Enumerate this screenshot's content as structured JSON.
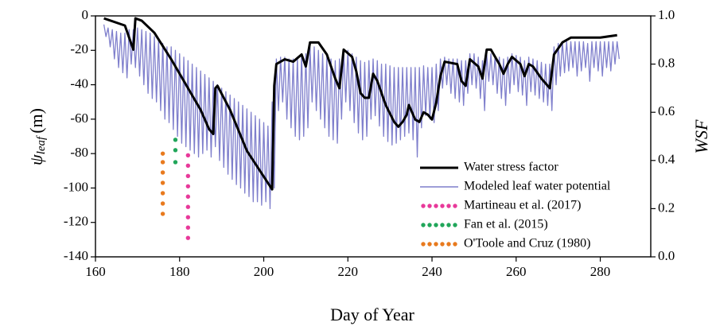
{
  "chart_data": {
    "type": "line",
    "x_label": "Day of Year",
    "y_label": {
      "symbol": "ψ",
      "subscript": "leaf",
      "unit": "(m)"
    },
    "y2_label": "WSF",
    "xlim": [
      160,
      292
    ],
    "xticks": [
      160,
      180,
      200,
      220,
      240,
      260,
      280
    ],
    "ylim": [
      -140,
      0
    ],
    "yticks": [
      -140,
      -120,
      -100,
      -80,
      -60,
      -40,
      -20,
      0
    ],
    "y2lim": [
      0,
      1
    ],
    "y2ticks": [
      {
        "value": 0,
        "label": "0.0"
      },
      0.2,
      0.4,
      0.6,
      0.8,
      {
        "value": 1,
        "label": "1.0"
      }
    ],
    "legend": "lower right",
    "series": [
      {
        "name": "Water stress factor",
        "color": "#000000",
        "style": "line",
        "axis": "y2",
        "x": [
          162,
          167,
          169,
          169.5,
          171,
          174,
          178,
          182,
          185,
          187,
          188,
          188.5,
          189,
          192,
          196,
          199,
          202,
          202.5,
          203,
          205,
          207,
          209,
          210,
          211,
          213,
          215,
          217,
          218,
          219,
          221,
          222,
          223,
          224,
          225,
          226,
          227,
          229,
          231,
          232,
          233,
          234,
          234.5,
          235,
          236,
          237,
          238,
          239,
          240,
          241,
          242,
          243,
          246,
          247,
          248,
          249,
          251,
          252,
          253,
          254,
          256,
          257,
          258,
          259,
          261,
          262,
          263,
          264,
          266,
          268,
          269,
          271,
          273,
          276,
          280,
          284
        ],
        "values": [
          0.99,
          0.96,
          0.86,
          0.99,
          0.98,
          0.93,
          0.82,
          0.7,
          0.61,
          0.53,
          0.51,
          0.7,
          0.71,
          0.61,
          0.44,
          0.36,
          0.28,
          0.71,
          0.8,
          0.82,
          0.81,
          0.84,
          0.79,
          0.89,
          0.89,
          0.84,
          0.74,
          0.7,
          0.86,
          0.83,
          0.77,
          0.68,
          0.66,
          0.66,
          0.76,
          0.73,
          0.63,
          0.56,
          0.54,
          0.56,
          0.59,
          0.63,
          0.61,
          0.57,
          0.56,
          0.6,
          0.59,
          0.57,
          0.64,
          0.75,
          0.81,
          0.8,
          0.73,
          0.71,
          0.82,
          0.79,
          0.74,
          0.86,
          0.86,
          0.8,
          0.76,
          0.8,
          0.83,
          0.8,
          0.75,
          0.8,
          0.79,
          0.74,
          0.7,
          0.84,
          0.89,
          0.91,
          0.91,
          0.91,
          0.92
        ]
      },
      {
        "name": "Modeled leaf water potential",
        "color": "#7f7fcc",
        "style": "line",
        "x": [
          162,
          162.5,
          163,
          163.5,
          164,
          164.5,
          165,
          165.5,
          166,
          166.5,
          167,
          167.5,
          168,
          168.5,
          169,
          169.5,
          170,
          170.5,
          171,
          171.5,
          172,
          172.5,
          173,
          173.5,
          174,
          174.5,
          175,
          175.5,
          176,
          176.5,
          177,
          177.5,
          178,
          178.5,
          179,
          179.5,
          180,
          180.5,
          181,
          181.5,
          182,
          182.5,
          183,
          183.5,
          184,
          184.5,
          185,
          185.5,
          186,
          186.5,
          187,
          187.5,
          188,
          188.5,
          189,
          189.5,
          190,
          190.5,
          191,
          191.5,
          192,
          192.5,
          193,
          193.5,
          194,
          194.5,
          195,
          195.5,
          196,
          196.5,
          197,
          197.5,
          198,
          198.5,
          199,
          199.5,
          200,
          200.5,
          201,
          201.5,
          202,
          202.5,
          203,
          203.5,
          204,
          204.5,
          205,
          205.5,
          206,
          206.5,
          207,
          207.5,
          208,
          208.5,
          209,
          209.5,
          210,
          210.5,
          211,
          211.5,
          212,
          212.5,
          213,
          213.5,
          214,
          214.5,
          215,
          215.5,
          216,
          216.5,
          217,
          217.5,
          218,
          218.5,
          219,
          219.5,
          220,
          220.5,
          221,
          221.5,
          222,
          222.5,
          223,
          223.5,
          224,
          224.5,
          225,
          225.5,
          226,
          226.5,
          227,
          227.5,
          228,
          228.5,
          229,
          229.5,
          230,
          230.5,
          231,
          231.5,
          232,
          232.5,
          233,
          233.5,
          234,
          234.5,
          235,
          235.5,
          236,
          236.5,
          237,
          237.5,
          238,
          238.5,
          239,
          239.5,
          240,
          240.5,
          241,
          241.5,
          242,
          242.5,
          243,
          243.5,
          244,
          244.5,
          245,
          245.5,
          246,
          246.5,
          247,
          247.5,
          248,
          248.5,
          249,
          249.5,
          250,
          250.5,
          251,
          251.5,
          252,
          252.5,
          253,
          253.5,
          254,
          254.5,
          255,
          255.5,
          256,
          256.5,
          257,
          257.5,
          258,
          258.5,
          259,
          259.5,
          260,
          260.5,
          261,
          261.5,
          262,
          262.5,
          263,
          263.5,
          264,
          264.5,
          265,
          265.5,
          266,
          266.5,
          267,
          267.5,
          268,
          268.5,
          269,
          269.5,
          270,
          270.5,
          271,
          271.5,
          272,
          272.5,
          273,
          273.5,
          274,
          274.5,
          275,
          275.5,
          276,
          276.5,
          277,
          277.5,
          278,
          278.5,
          279,
          279.5,
          280,
          280.5,
          281,
          281.5,
          282,
          282.5,
          283,
          283.5,
          284,
          284.5
        ],
        "values": [
          -5,
          -12,
          -7,
          -18,
          -8,
          -25,
          -9,
          -30,
          -10,
          -33,
          -10,
          -36,
          -8,
          -28,
          -8,
          -30,
          -7,
          -35,
          -8,
          -40,
          -9,
          -45,
          -10,
          -48,
          -12,
          -50,
          -14,
          -55,
          -16,
          -60,
          -18,
          -62,
          -18,
          -66,
          -20,
          -70,
          -22,
          -74,
          -24,
          -76,
          -26,
          -78,
          -28,
          -80,
          -30,
          -82,
          -32,
          -80,
          -34,
          -78,
          -36,
          -82,
          -38,
          -76,
          -40,
          -84,
          -42,
          -88,
          -44,
          -92,
          -46,
          -95,
          -48,
          -98,
          -50,
          -100,
          -52,
          -103,
          -54,
          -105,
          -56,
          -108,
          -58,
          -108,
          -60,
          -110,
          -62,
          -108,
          -64,
          -112,
          -50,
          -100,
          -25,
          -55,
          -24,
          -50,
          -24,
          -60,
          -25,
          -65,
          -25,
          -70,
          -24,
          -72,
          -22,
          -70,
          -22,
          -65,
          -18,
          -50,
          -18,
          -55,
          -20,
          -60,
          -22,
          -65,
          -24,
          -70,
          -25,
          -72,
          -26,
          -74,
          -25,
          -60,
          -20,
          -50,
          -20,
          -55,
          -22,
          -62,
          -24,
          -68,
          -26,
          -72,
          -27,
          -70,
          -26,
          -60,
          -25,
          -58,
          -26,
          -64,
          -28,
          -70,
          -28,
          -73,
          -29,
          -75,
          -30,
          -74,
          -30,
          -72,
          -30,
          -70,
          -30,
          -68,
          -30,
          -72,
          -30,
          -82,
          -30,
          -65,
          -29,
          -58,
          -30,
          -60,
          -30,
          -62,
          -28,
          -55,
          -25,
          -42,
          -24,
          -40,
          -25,
          -45,
          -25,
          -48,
          -25,
          -50,
          -26,
          -52,
          -26,
          -45,
          -22,
          -40,
          -22,
          -42,
          -24,
          -48,
          -26,
          -55,
          -22,
          -38,
          -22,
          -40,
          -23,
          -45,
          -24,
          -48,
          -25,
          -52,
          -24,
          -45,
          -22,
          -40,
          -23,
          -44,
          -24,
          -46,
          -26,
          -52,
          -24,
          -44,
          -25,
          -46,
          -26,
          -48,
          -27,
          -50,
          -28,
          -52,
          -28,
          -55,
          -18,
          -40,
          -16,
          -35,
          -15,
          -33,
          -15,
          -32,
          -15,
          -30,
          -15,
          -35,
          -15,
          -32,
          -15,
          -30,
          -16,
          -38,
          -15,
          -30,
          -15,
          -32,
          -15,
          -35,
          -15,
          -30,
          -15,
          -32,
          -15,
          -28,
          -15,
          -25
        ]
      },
      {
        "name": "Martineau et al. (2017)",
        "color": "#e8399a",
        "style": "dots",
        "x": [
          182,
          182,
          182,
          182,
          182,
          182,
          182,
          182,
          182
        ],
        "values": [
          -81,
          -87,
          -93,
          -99,
          -105,
          -111,
          -117,
          -123,
          -129
        ]
      },
      {
        "name": "Fan et al. (2015)",
        "color": "#21a65a",
        "style": "dots",
        "x": [
          179,
          179,
          179
        ],
        "values": [
          -72,
          -78,
          -85
        ]
      },
      {
        "name": "O'Toole and Cruz (1980)",
        "color": "#e87a1e",
        "style": "dots",
        "x": [
          176,
          176,
          176,
          176,
          176,
          176,
          176
        ],
        "values": [
          -80,
          -85,
          -91,
          -97,
          -103,
          -109,
          -115
        ]
      }
    ]
  }
}
